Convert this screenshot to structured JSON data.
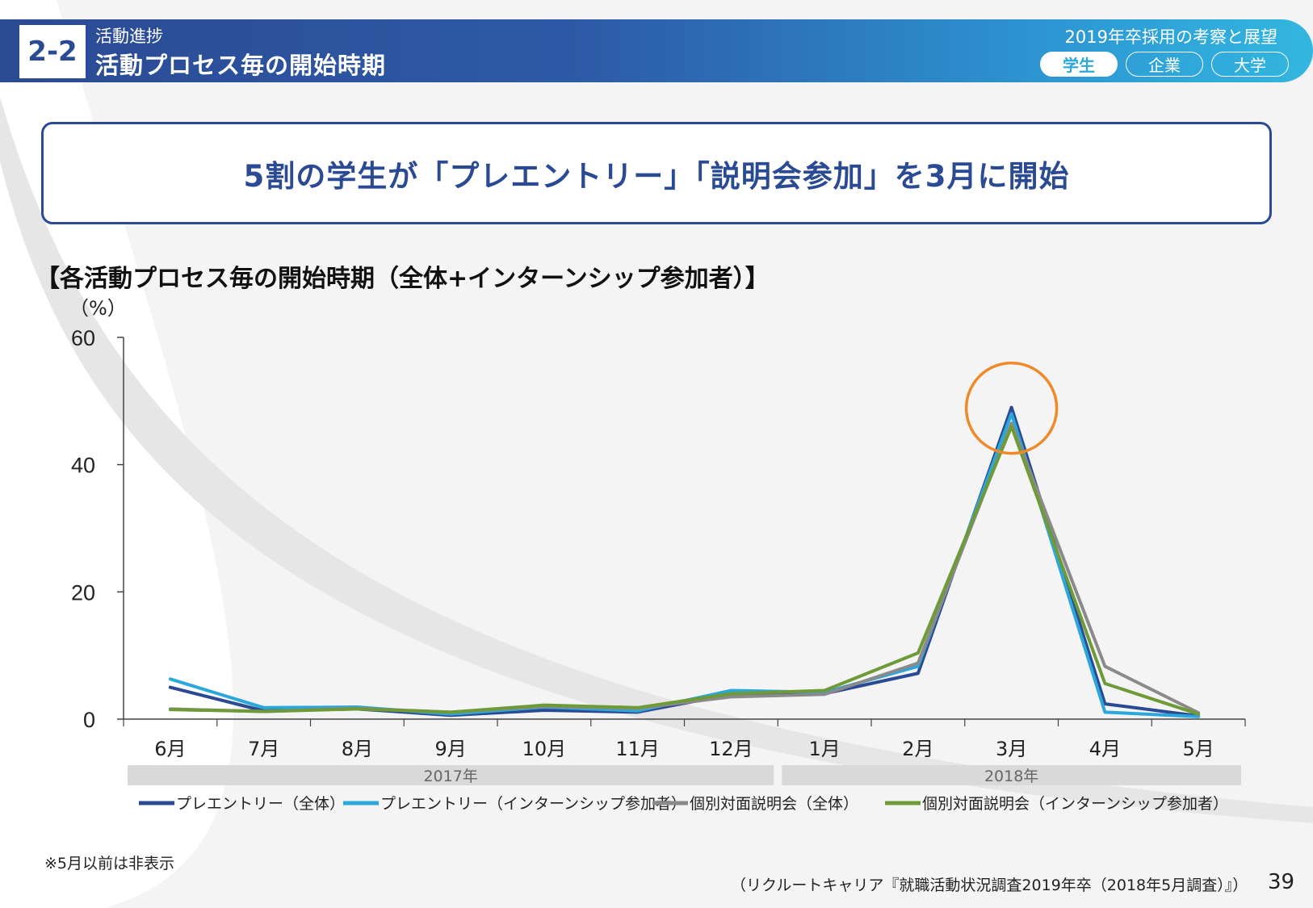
{
  "header": {
    "section_number": "2-2",
    "section_sub": "活動進捗",
    "section_title": "活動プロセス毎の開始時期",
    "report_title": "2019年卒採用の考察と展望",
    "tabs": [
      {
        "label": "学生",
        "active": true
      },
      {
        "label": "企業",
        "active": false
      },
      {
        "label": "大学",
        "active": false
      }
    ]
  },
  "headline": "5割の学生が「プレエントリー」「説明会参加」を3月に開始",
  "chart_heading": "【各活動プロセス毎の開始時期（全体+インターンシップ参加者）】",
  "chart_data": {
    "type": "line",
    "title": "【各活動プロセス毎の開始時期（全体+インターンシップ参加者）】",
    "ylabel": "（%）",
    "xlabel": "",
    "ylim": [
      0,
      60
    ],
    "yticks": [
      0,
      20,
      40,
      60
    ],
    "categories": [
      "6月",
      "7月",
      "8月",
      "9月",
      "10月",
      "11月",
      "12月",
      "1月",
      "2月",
      "3月",
      "4月",
      "5月"
    ],
    "year_groups": [
      {
        "label": "2017年",
        "start": 0,
        "end": 6
      },
      {
        "label": "2018年",
        "start": 7,
        "end": 11
      }
    ],
    "series": [
      {
        "name": "プレエントリー（全体）",
        "color": "#2b4a94",
        "values": [
          5.0,
          1.3,
          1.6,
          0.6,
          1.4,
          1.1,
          3.9,
          4.0,
          7.2,
          49.0,
          2.4,
          0.5
        ]
      },
      {
        "name": "プレエントリー（インターンシップ参加者）",
        "color": "#2ba7d9",
        "values": [
          6.3,
          1.8,
          1.9,
          0.8,
          1.9,
          1.3,
          4.5,
          4.2,
          8.3,
          48.0,
          1.1,
          0.4
        ]
      },
      {
        "name": "個別対面説明会（全体）",
        "color": "#8a8a8a",
        "values": [
          1.6,
          1.2,
          1.7,
          1.1,
          2.0,
          1.7,
          3.5,
          3.9,
          8.8,
          46.5,
          8.3,
          1.0
        ]
      },
      {
        "name": "個別対面説明会（インターンシップ参加者）",
        "color": "#6e9a38",
        "values": [
          1.5,
          1.2,
          1.6,
          1.1,
          2.2,
          1.8,
          4.0,
          4.5,
          10.4,
          46.0,
          5.6,
          0.8
        ]
      }
    ],
    "highlight": {
      "category": "3月",
      "color": "#f0892a"
    },
    "legend_position": "bottom"
  },
  "footnote": "※5月以前は非表示",
  "source": "（リクルートキャリア『就職活動状況調査2019年卒（2018年5月調査）』）",
  "page_number": "39"
}
